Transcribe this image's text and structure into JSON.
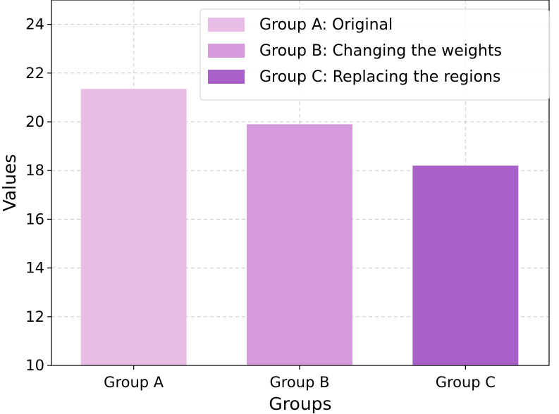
{
  "chart_data": {
    "type": "bar",
    "title": "",
    "xlabel": "Groups",
    "ylabel": "Values",
    "ylim": [
      10,
      25
    ],
    "yticks": [
      10,
      12,
      14,
      16,
      18,
      20,
      22,
      24
    ],
    "grid": true,
    "legend_position": "top-right",
    "categories": [
      "Group A",
      "Group B",
      "Group C"
    ],
    "values": [
      21.35,
      19.9,
      18.2
    ],
    "colors": [
      "#e8bde6",
      "#d49adc",
      "#a961c9"
    ],
    "legend": [
      "Group A: Original",
      "Group B: Changing the weights",
      "Group C: Replacing the regions"
    ]
  }
}
